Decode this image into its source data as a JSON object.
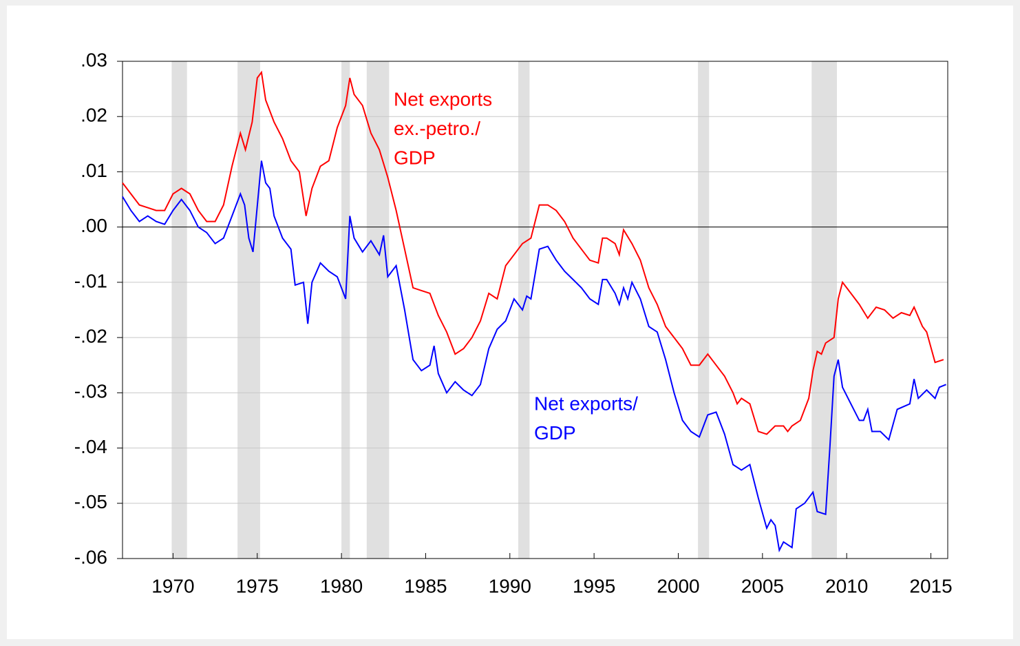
{
  "chart_data": {
    "type": "line",
    "xlim": [
      1967,
      2016
    ],
    "xticks": [
      1970,
      1975,
      1980,
      1985,
      1990,
      1995,
      2000,
      2005,
      2010,
      2015
    ],
    "ylim": [
      -0.06,
      0.03
    ],
    "yticks": [
      {
        "value": 0.03,
        "label": ".03"
      },
      {
        "value": 0.02,
        "label": ".02"
      },
      {
        "value": 0.01,
        "label": ".01"
      },
      {
        "value": 0,
        "label": ".00"
      },
      {
        "value": -0.01,
        "label": "-.01"
      },
      {
        "value": -0.02,
        "label": "-.02"
      },
      {
        "value": -0.03,
        "label": "-.03"
      },
      {
        "value": -0.04,
        "label": "-.04"
      },
      {
        "value": -0.05,
        "label": "-.05"
      },
      {
        "value": -0.06,
        "label": "-.06"
      }
    ],
    "grid": true,
    "recessions": [
      [
        1969.92,
        1970.83
      ],
      [
        1973.83,
        1975.17
      ],
      [
        1980.0,
        1980.5
      ],
      [
        1981.5,
        1982.83
      ],
      [
        1990.5,
        1991.17
      ],
      [
        2001.17,
        2001.83
      ],
      [
        2007.92,
        2009.42
      ]
    ],
    "series": [
      {
        "color": "#ff0000",
        "x": [
          1967.0,
          1967.5,
          1968.0,
          1968.5,
          1969.0,
          1969.5,
          1970.0,
          1970.5,
          1971.0,
          1971.5,
          1972.0,
          1972.5,
          1973.0,
          1973.5,
          1974.0,
          1974.3,
          1974.7,
          1975.0,
          1975.25,
          1975.5,
          1976.0,
          1976.5,
          1977.0,
          1977.5,
          1977.9,
          1978.25,
          1978.75,
          1979.25,
          1979.75,
          1980.25,
          1980.5,
          1980.75,
          1981.25,
          1981.75,
          1982.25,
          1982.75,
          1983.25,
          1983.75,
          1984.25,
          1984.75,
          1985.25,
          1985.75,
          1986.25,
          1986.75,
          1987.25,
          1987.75,
          1988.25,
          1988.75,
          1989.25,
          1989.75,
          1990.25,
          1990.75,
          1991.25,
          1991.75,
          1992.25,
          1992.75,
          1993.25,
          1993.75,
          1994.25,
          1994.75,
          1995.25,
          1995.5,
          1995.75,
          1996.25,
          1996.5,
          1996.75,
          1997.25,
          1997.75,
          1998.25,
          1998.75,
          1999.25,
          1999.75,
          2000.25,
          2000.75,
          2001.25,
          2001.75,
          2002.25,
          2002.75,
          2003.25,
          2003.5,
          2003.75,
          2004.25,
          2004.75,
          2005.25,
          2005.75,
          2006.25,
          2006.5,
          2006.75,
          2007.25,
          2007.75,
          2008.0,
          2008.25,
          2008.5,
          2008.75,
          2009.25,
          2009.5,
          2009.75,
          2010.25,
          2010.75,
          2011.25,
          2011.75,
          2012.25,
          2012.75,
          2013.25,
          2013.75,
          2014.0,
          2014.5,
          2014.75,
          2015.25,
          2015.75
        ],
        "values": [
          0.008,
          0.006,
          0.004,
          0.0035,
          0.003,
          0.003,
          0.006,
          0.007,
          0.006,
          0.003,
          0.001,
          0.001,
          0.004,
          0.011,
          0.017,
          0.014,
          0.019,
          0.027,
          0.028,
          0.023,
          0.019,
          0.016,
          0.012,
          0.01,
          0.002,
          0.007,
          0.011,
          0.012,
          0.018,
          0.022,
          0.027,
          0.024,
          0.022,
          0.017,
          0.014,
          0.009,
          0.003,
          -0.004,
          -0.011,
          -0.0115,
          -0.012,
          -0.016,
          -0.019,
          -0.023,
          -0.022,
          -0.02,
          -0.017,
          -0.012,
          -0.013,
          -0.007,
          -0.005,
          -0.003,
          -0.002,
          0.004,
          0.004,
          0.003,
          0.001,
          -0.002,
          -0.004,
          -0.006,
          -0.0065,
          -0.002,
          -0.002,
          -0.003,
          -0.005,
          -0.0005,
          -0.003,
          -0.006,
          -0.011,
          -0.014,
          -0.018,
          -0.02,
          -0.022,
          -0.025,
          -0.025,
          -0.023,
          -0.025,
          -0.027,
          -0.03,
          -0.032,
          -0.031,
          -0.032,
          -0.037,
          -0.0375,
          -0.036,
          -0.036,
          -0.037,
          -0.036,
          -0.035,
          -0.031,
          -0.026,
          -0.0225,
          -0.023,
          -0.021,
          -0.02,
          -0.013,
          -0.01,
          -0.012,
          -0.014,
          -0.0165,
          -0.0145,
          -0.015,
          -0.0165,
          -0.0155,
          -0.016,
          -0.0145,
          -0.018,
          -0.019,
          -0.0245,
          -0.024
        ]
      },
      {
        "color": "#0000ff",
        "x": [
          1967.0,
          1967.5,
          1968.0,
          1968.5,
          1969.0,
          1969.5,
          1970.0,
          1970.5,
          1971.0,
          1971.5,
          1972.0,
          1972.5,
          1973.0,
          1973.5,
          1974.0,
          1974.25,
          1974.5,
          1974.75,
          1975.25,
          1975.5,
          1975.75,
          1976.0,
          1976.5,
          1977.0,
          1977.25,
          1977.75,
          1978.0,
          1978.25,
          1978.75,
          1979.25,
          1979.75,
          1980.25,
          1980.5,
          1980.75,
          1981.25,
          1981.75,
          1982.25,
          1982.5,
          1982.75,
          1983.25,
          1983.75,
          1984.25,
          1984.75,
          1985.25,
          1985.5,
          1985.75,
          1986.25,
          1986.75,
          1987.25,
          1987.75,
          1988.25,
          1988.75,
          1989.25,
          1989.75,
          1990.25,
          1990.75,
          1991.0,
          1991.25,
          1991.75,
          1992.25,
          1992.75,
          1993.25,
          1993.75,
          1994.25,
          1994.75,
          1995.25,
          1995.5,
          1995.75,
          1996.25,
          1996.5,
          1996.75,
          1997.0,
          1997.25,
          1997.75,
          1998.25,
          1998.75,
          1999.25,
          1999.75,
          2000.25,
          2000.75,
          2001.25,
          2001.5,
          2001.75,
          2002.25,
          2002.75,
          2003.25,
          2003.75,
          2004.25,
          2004.75,
          2005.25,
          2005.5,
          2005.75,
          2006.0,
          2006.25,
          2006.75,
          2007.0,
          2007.5,
          2008.0,
          2008.25,
          2008.75,
          2009.0,
          2009.25,
          2009.5,
          2009.75,
          2010.25,
          2010.75,
          2011.0,
          2011.25,
          2011.5,
          2012.0,
          2012.5,
          2013.0,
          2013.75,
          2014.0,
          2014.25,
          2014.75,
          2015.25,
          2015.5,
          2015.9
        ],
        "values": [
          0.0055,
          0.003,
          0.001,
          0.002,
          0.001,
          0.0005,
          0.003,
          0.005,
          0.003,
          0,
          -0.001,
          -0.003,
          -0.002,
          0.002,
          0.006,
          0.004,
          -0.002,
          -0.0045,
          0.012,
          0.008,
          0.007,
          0.002,
          -0.002,
          -0.004,
          -0.0105,
          -0.01,
          -0.0175,
          -0.01,
          -0.0065,
          -0.008,
          -0.009,
          -0.013,
          0.002,
          -0.002,
          -0.0045,
          -0.0025,
          -0.005,
          -0.0015,
          -0.009,
          -0.007,
          -0.015,
          -0.024,
          -0.026,
          -0.025,
          -0.0215,
          -0.0265,
          -0.03,
          -0.028,
          -0.0295,
          -0.0305,
          -0.0285,
          -0.022,
          -0.0185,
          -0.017,
          -0.013,
          -0.015,
          -0.0125,
          -0.013,
          -0.004,
          -0.0035,
          -0.006,
          -0.008,
          -0.0095,
          -0.011,
          -0.013,
          -0.014,
          -0.0095,
          -0.0095,
          -0.012,
          -0.014,
          -0.011,
          -0.013,
          -0.01,
          -0.013,
          -0.018,
          -0.019,
          -0.024,
          -0.03,
          -0.035,
          -0.037,
          -0.038,
          -0.036,
          -0.034,
          -0.0335,
          -0.0375,
          -0.043,
          -0.044,
          -0.043,
          -0.049,
          -0.0545,
          -0.053,
          -0.054,
          -0.0585,
          -0.057,
          -0.058,
          -0.051,
          -0.05,
          -0.048,
          -0.0515,
          -0.052,
          -0.04,
          -0.027,
          -0.024,
          -0.029,
          -0.032,
          -0.035,
          -0.035,
          -0.033,
          -0.037,
          -0.037,
          -0.0385,
          -0.033,
          -0.032,
          -0.0275,
          -0.031,
          -0.0295,
          -0.031,
          -0.029,
          -0.0285
        ]
      }
    ],
    "annotations": [
      {
        "lines": [
          "Net exports",
          "ex.-petro./",
          "GDP"
        ],
        "color": "#ff0000"
      },
      {
        "lines": [
          "Net exports/",
          "GDP"
        ],
        "color": "#0000ff"
      }
    ]
  }
}
